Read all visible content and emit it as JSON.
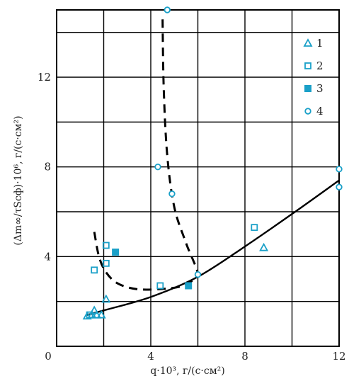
{
  "chart_data": {
    "type": "scatter",
    "title": "",
    "xlabel": "q·10³, г/(с·см²)",
    "ylabel": "(Δm∞/τSсф)·10⁶, г/(с·см²)",
    "xlim": [
      0,
      12
    ],
    "ylim": [
      0,
      15
    ],
    "x_ticks": [
      "0",
      "4",
      "8",
      "12"
    ],
    "y_ticks": [
      "4",
      "8",
      "12"
    ],
    "grid": true,
    "legend_position": "top-right",
    "colors": {
      "markers": "#1aa0c8",
      "curves": "#000000",
      "grid": "#000000"
    },
    "series": [
      {
        "name": "1",
        "marker": "triangle-open",
        "points": [
          [
            1.3,
            1.35
          ],
          [
            1.5,
            1.4
          ],
          [
            1.6,
            1.6
          ],
          [
            1.7,
            1.4
          ],
          [
            1.9,
            1.4
          ],
          [
            2.1,
            2.1
          ],
          [
            8.8,
            4.4
          ]
        ]
      },
      {
        "name": "2",
        "marker": "square-open",
        "points": [
          [
            1.4,
            1.4
          ],
          [
            1.6,
            3.4
          ],
          [
            2.1,
            4.5
          ],
          [
            2.1,
            3.7
          ],
          [
            4.4,
            2.7
          ],
          [
            8.4,
            5.3
          ]
        ]
      },
      {
        "name": "3",
        "marker": "square-filled",
        "points": [
          [
            2.5,
            4.2
          ],
          [
            5.6,
            2.7
          ]
        ]
      },
      {
        "name": "4",
        "marker": "circle-open",
        "points": [
          [
            4.7,
            15.0
          ],
          [
            4.3,
            8.0
          ],
          [
            4.9,
            6.8
          ],
          [
            6.0,
            3.2
          ],
          [
            12.0,
            7.9
          ],
          [
            12.0,
            7.1
          ]
        ]
      }
    ],
    "curves": [
      {
        "style": "solid",
        "points": [
          [
            1.3,
            1.4
          ],
          [
            2,
            1.6
          ],
          [
            4,
            2.2
          ],
          [
            6,
            3.1
          ],
          [
            8,
            4.45
          ],
          [
            10,
            5.9
          ],
          [
            12,
            7.4
          ]
        ]
      },
      {
        "style": "dashed",
        "points": [
          [
            1.6,
            5.1
          ],
          [
            1.8,
            4.0
          ],
          [
            2.1,
            3.3
          ],
          [
            2.6,
            2.8
          ],
          [
            3.4,
            2.55
          ],
          [
            4.4,
            2.55
          ],
          [
            5.2,
            2.65
          ],
          [
            5.6,
            2.85
          ],
          [
            6.0,
            3.2
          ],
          [
            5.5,
            4.6
          ],
          [
            5.0,
            6.2
          ],
          [
            4.7,
            8.5
          ],
          [
            4.55,
            11.5
          ],
          [
            4.5,
            14.7
          ]
        ]
      }
    ]
  }
}
